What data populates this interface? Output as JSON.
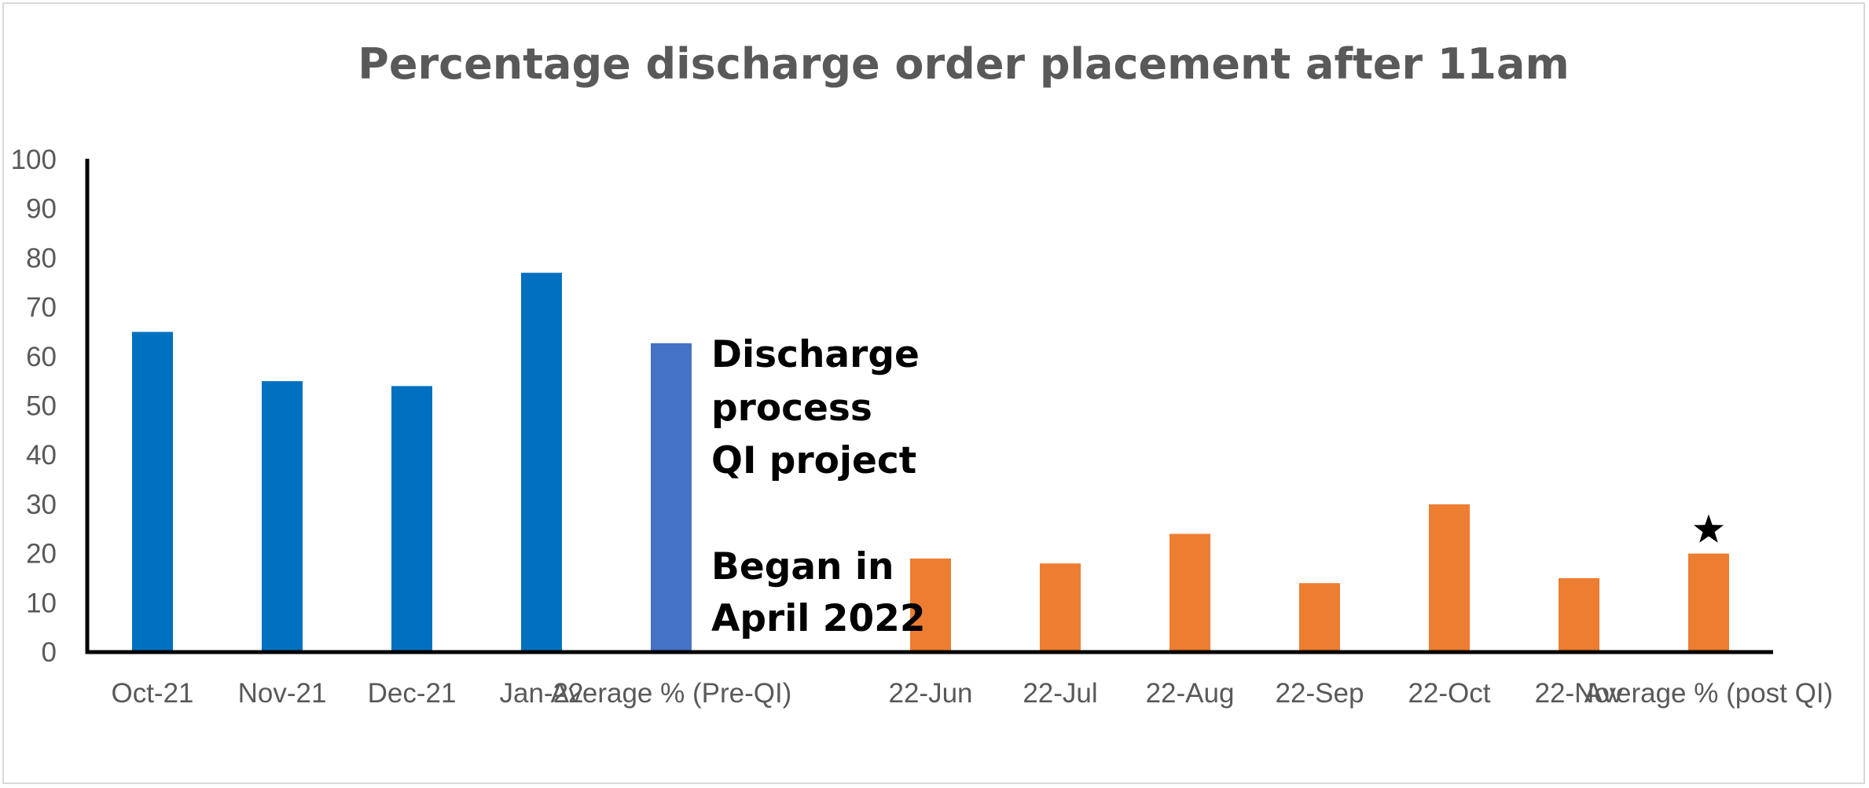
{
  "chart_data": {
    "type": "bar",
    "title": "Percentage discharge order placement after 11am",
    "xlabel": "",
    "ylabel": "",
    "ylim": [
      0,
      100
    ],
    "yticks": [
      0,
      10,
      20,
      30,
      40,
      50,
      60,
      70,
      80,
      90,
      100
    ],
    "grid": false,
    "legend": "none",
    "categories": [
      "Oct-21",
      "Nov-21",
      "Dec-21",
      "Jan-22",
      "Average % (Pre-QI)",
      "",
      "22-Jun",
      "22-Jul",
      "22-Aug",
      "22-Sep",
      "22-Oct",
      "22-Nov",
      "Average % (post QI)"
    ],
    "values": [
      65,
      55,
      54,
      77,
      62.7,
      null,
      19,
      18,
      24,
      14,
      30,
      15,
      20
    ],
    "bar_colors": [
      "#0070c0",
      "#0070c0",
      "#0070c0",
      "#0070c0",
      "#4472c4",
      null,
      "#ed7d31",
      "#ed7d31",
      "#ed7d31",
      "#ed7d31",
      "#ed7d31",
      "#ed7d31",
      "#ed7d31"
    ],
    "annotations": [
      {
        "lines": [
          "Discharge",
          "process",
          "QI project",
          "",
          "Began in",
          "April 2022"
        ]
      },
      {
        "marker": "star",
        "category": "Average % (post QI)"
      }
    ]
  }
}
